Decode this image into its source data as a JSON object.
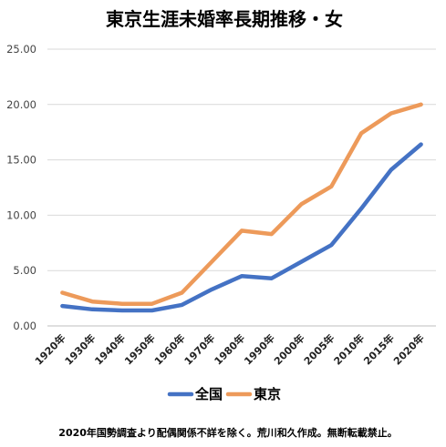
{
  "chart_data": {
    "type": "line",
    "title": "東京生涯未婚率長期推移・女",
    "categories": [
      "1920年",
      "1930年",
      "1940年",
      "1950年",
      "1960年",
      "1970年",
      "1980年",
      "1990年",
      "2000年",
      "2005年",
      "2010年",
      "2015年",
      "2020年"
    ],
    "ylim": [
      0,
      25
    ],
    "yticks": [
      "0.00",
      "5.00",
      "10.00",
      "15.00",
      "20.00",
      "25.00"
    ],
    "grid": true,
    "legend_position": "bottom",
    "series": [
      {
        "name": "全国",
        "color": "#4472C4",
        "values": [
          1.8,
          1.5,
          1.4,
          1.4,
          1.9,
          3.3,
          4.5,
          4.3,
          5.8,
          7.3,
          10.6,
          14.1,
          16.4
        ]
      },
      {
        "name": "東京",
        "color": "#ED9A5A",
        "values": [
          3.0,
          2.2,
          2.0,
          2.0,
          3.0,
          5.8,
          8.6,
          8.3,
          11.0,
          12.6,
          17.4,
          19.2,
          20.0
        ]
      }
    ],
    "footer": "2020年国勢調査より配偶関係不詳を除く。荒川和久作成。無断転載禁止。"
  }
}
